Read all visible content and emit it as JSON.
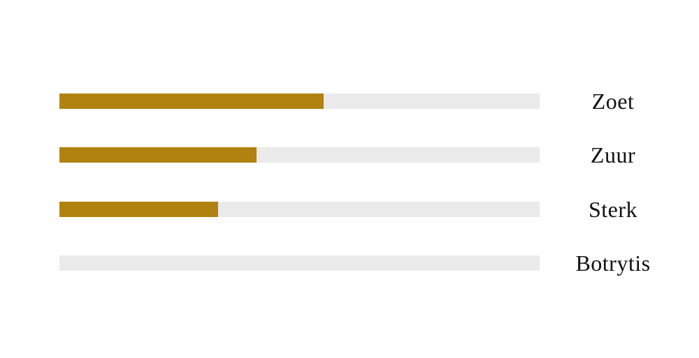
{
  "chart_data": {
    "type": "bar",
    "orientation": "horizontal",
    "title": "",
    "categories": [
      "Zoet",
      "Zuur",
      "Sterk",
      "Botrytis"
    ],
    "values": [
      55,
      41,
      33,
      0
    ],
    "value_unit": "percent of track length",
    "xlim": [
      0,
      100
    ],
    "grid": false,
    "legend": "none",
    "axes_visible": false,
    "fill_color": "#B1820F",
    "track_color": "#EAEAEA",
    "label_color": "#111111",
    "background_color": "#FFFFFF"
  }
}
